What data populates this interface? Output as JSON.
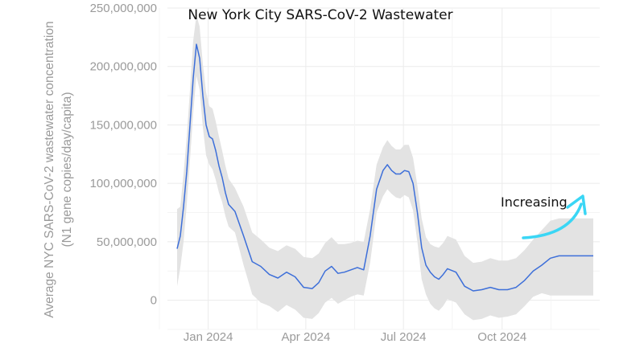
{
  "chart_data": {
    "type": "line",
    "title": "New York City SARS-CoV-2 Wastewater",
    "ylabel_line1": "Average NYC SARS-CoV-2 wastewater concentration",
    "ylabel_line2": "(N1 gene copies/day/capita)",
    "xlabel": "",
    "ylim": [
      -25000000,
      250000000
    ],
    "yticks": [
      0,
      50000000,
      100000000,
      150000000,
      200000000,
      250000000
    ],
    "ytick_labels": [
      "0",
      "50,000,000",
      "100,000,000",
      "150,000,000",
      "200,000,000",
      "250,000,000"
    ],
    "xlim": [
      "2023-11-24",
      "2024-12-31"
    ],
    "xticks": [
      "2024-01-01",
      "2024-04-01",
      "2024-07-01",
      "2024-10-01"
    ],
    "xtick_labels": [
      "Jan 2024",
      "Apr 2024",
      "Jul 2024",
      "Oct 2024"
    ],
    "grid": true,
    "line_color": "#3d6fd9",
    "band_color": "#e3e3e3",
    "series": [
      {
        "x": [
          "2023-12-03",
          "2023-12-06",
          "2023-12-09",
          "2023-12-12",
          "2023-12-15",
          "2023-12-18",
          "2023-12-21",
          "2023-12-24",
          "2023-12-27",
          "2023-12-30",
          "2024-01-02",
          "2024-01-05",
          "2024-01-08",
          "2024-01-11",
          "2024-01-14",
          "2024-01-17",
          "2024-01-20",
          "2024-01-26",
          "2024-02-03",
          "2024-02-11",
          "2024-02-19",
          "2024-02-27",
          "2024-03-06",
          "2024-03-14",
          "2024-03-22",
          "2024-03-30",
          "2024-04-07",
          "2024-04-13",
          "2024-04-19",
          "2024-04-25",
          "2024-05-01",
          "2024-05-07",
          "2024-05-13",
          "2024-05-19",
          "2024-05-25",
          "2024-05-31",
          "2024-06-06",
          "2024-06-12",
          "2024-06-16",
          "2024-06-20",
          "2024-06-24",
          "2024-06-28",
          "2024-07-02",
          "2024-07-06",
          "2024-07-10",
          "2024-07-14",
          "2024-07-18",
          "2024-07-22",
          "2024-07-26",
          "2024-07-30",
          "2024-08-03",
          "2024-08-07",
          "2024-08-11",
          "2024-08-19",
          "2024-08-27",
          "2024-09-04",
          "2024-09-12",
          "2024-09-20",
          "2024-09-28",
          "2024-10-06",
          "2024-10-14",
          "2024-10-22",
          "2024-10-30",
          "2024-11-07",
          "2024-11-15",
          "2024-11-23",
          "2024-12-01",
          "2024-12-09",
          "2024-12-17",
          "2024-12-25"
        ],
        "y": [
          44000000,
          55000000,
          80000000,
          110000000,
          150000000,
          190000000,
          219000000,
          207000000,
          175000000,
          150000000,
          140000000,
          138000000,
          128000000,
          115000000,
          105000000,
          92000000,
          82000000,
          76000000,
          55000000,
          33000000,
          29000000,
          22000000,
          19000000,
          24000000,
          20000000,
          11000000,
          10000000,
          15000000,
          25000000,
          29000000,
          23000000,
          24000000,
          26000000,
          28000000,
          26000000,
          55000000,
          95000000,
          111000000,
          116000000,
          111000000,
          108000000,
          108000000,
          111000000,
          110000000,
          100000000,
          75000000,
          45000000,
          30000000,
          24000000,
          20000000,
          18000000,
          22000000,
          27000000,
          24000000,
          12000000,
          8000000,
          9000000,
          11000000,
          9000000,
          9000000,
          11000000,
          17000000,
          25000000,
          30000000,
          36000000,
          38000000,
          38000000,
          38000000,
          38000000,
          38000000
        ],
        "lower": [
          12000000,
          28000000,
          50000000,
          82000000,
          120000000,
          160000000,
          192000000,
          180000000,
          148000000,
          124000000,
          116000000,
          112000000,
          103000000,
          92000000,
          84000000,
          72000000,
          63000000,
          58000000,
          30000000,
          5000000,
          -2000000,
          -5000000,
          -10000000,
          -4000000,
          -8000000,
          -15000000,
          -16000000,
          -11000000,
          -2000000,
          2000000,
          -3000000,
          0,
          3000000,
          5000000,
          4000000,
          32000000,
          75000000,
          89000000,
          95000000,
          91000000,
          88000000,
          87000000,
          90000000,
          88000000,
          77000000,
          50000000,
          18000000,
          5000000,
          -3000000,
          -7000000,
          -9000000,
          -5000000,
          1000000,
          -2000000,
          -12000000,
          -17000000,
          -16000000,
          -13000000,
          -15000000,
          -14000000,
          -12000000,
          -5000000,
          3000000,
          6000000,
          4000000,
          4000000,
          4000000,
          4000000,
          4000000,
          4000000
        ],
        "upper": [
          78000000,
          80000000,
          108000000,
          140000000,
          180000000,
          222000000,
          244000000,
          234000000,
          202000000,
          178000000,
          166000000,
          164000000,
          153000000,
          140000000,
          128000000,
          115000000,
          104000000,
          96000000,
          80000000,
          58000000,
          52000000,
          45000000,
          42000000,
          47000000,
          44000000,
          37000000,
          36000000,
          40000000,
          49000000,
          54000000,
          48000000,
          48000000,
          49000000,
          51000000,
          50000000,
          78000000,
          116000000,
          131000000,
          137000000,
          132000000,
          129000000,
          129000000,
          133000000,
          133000000,
          122000000,
          98000000,
          70000000,
          54000000,
          48000000,
          46000000,
          45000000,
          49000000,
          55000000,
          52000000,
          38000000,
          32000000,
          33000000,
          36000000,
          34000000,
          34000000,
          36000000,
          43000000,
          52000000,
          60000000,
          68000000,
          70000000,
          70000000,
          70000000,
          70000000,
          70000000
        ]
      }
    ],
    "annotation": {
      "text": "Increasing",
      "arrow_color": "#3ad6f5"
    }
  }
}
